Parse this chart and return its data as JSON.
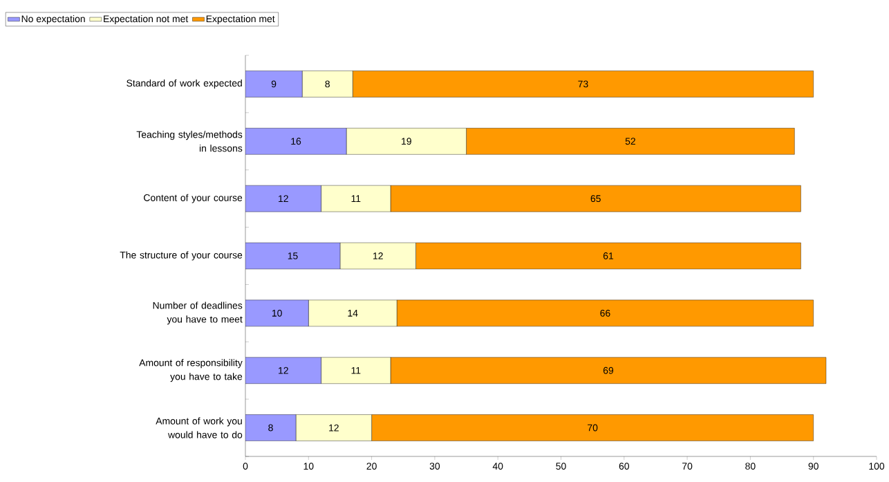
{
  "chart_data": {
    "type": "bar",
    "orientation": "horizontal",
    "stacked": true,
    "data_labels": true,
    "legend": "top left",
    "grid": false,
    "categories": [
      "Standard of work expected",
      "Teaching styles/methods in lessons",
      "Content of your course",
      "The structure of your course",
      "Number of deadlines you have to meet",
      "Amount of responsibility you have to take",
      "Amount of work you would have to do"
    ],
    "series": [
      {
        "name": "No expectation",
        "color": "#9999ff",
        "values": [
          9,
          16,
          12,
          15,
          10,
          12,
          8
        ]
      },
      {
        "name": "Expectation not met",
        "color": "#ffffcc",
        "values": [
          8,
          19,
          11,
          12,
          14,
          11,
          12
        ]
      },
      {
        "name": "Expectation met",
        "color": "#ff9900",
        "values": [
          73,
          52,
          65,
          61,
          66,
          69,
          70
        ]
      }
    ],
    "xlim": [
      0,
      100
    ],
    "xticks": [
      0,
      10,
      20,
      30,
      40,
      50,
      60,
      70,
      80,
      90,
      100
    ]
  }
}
